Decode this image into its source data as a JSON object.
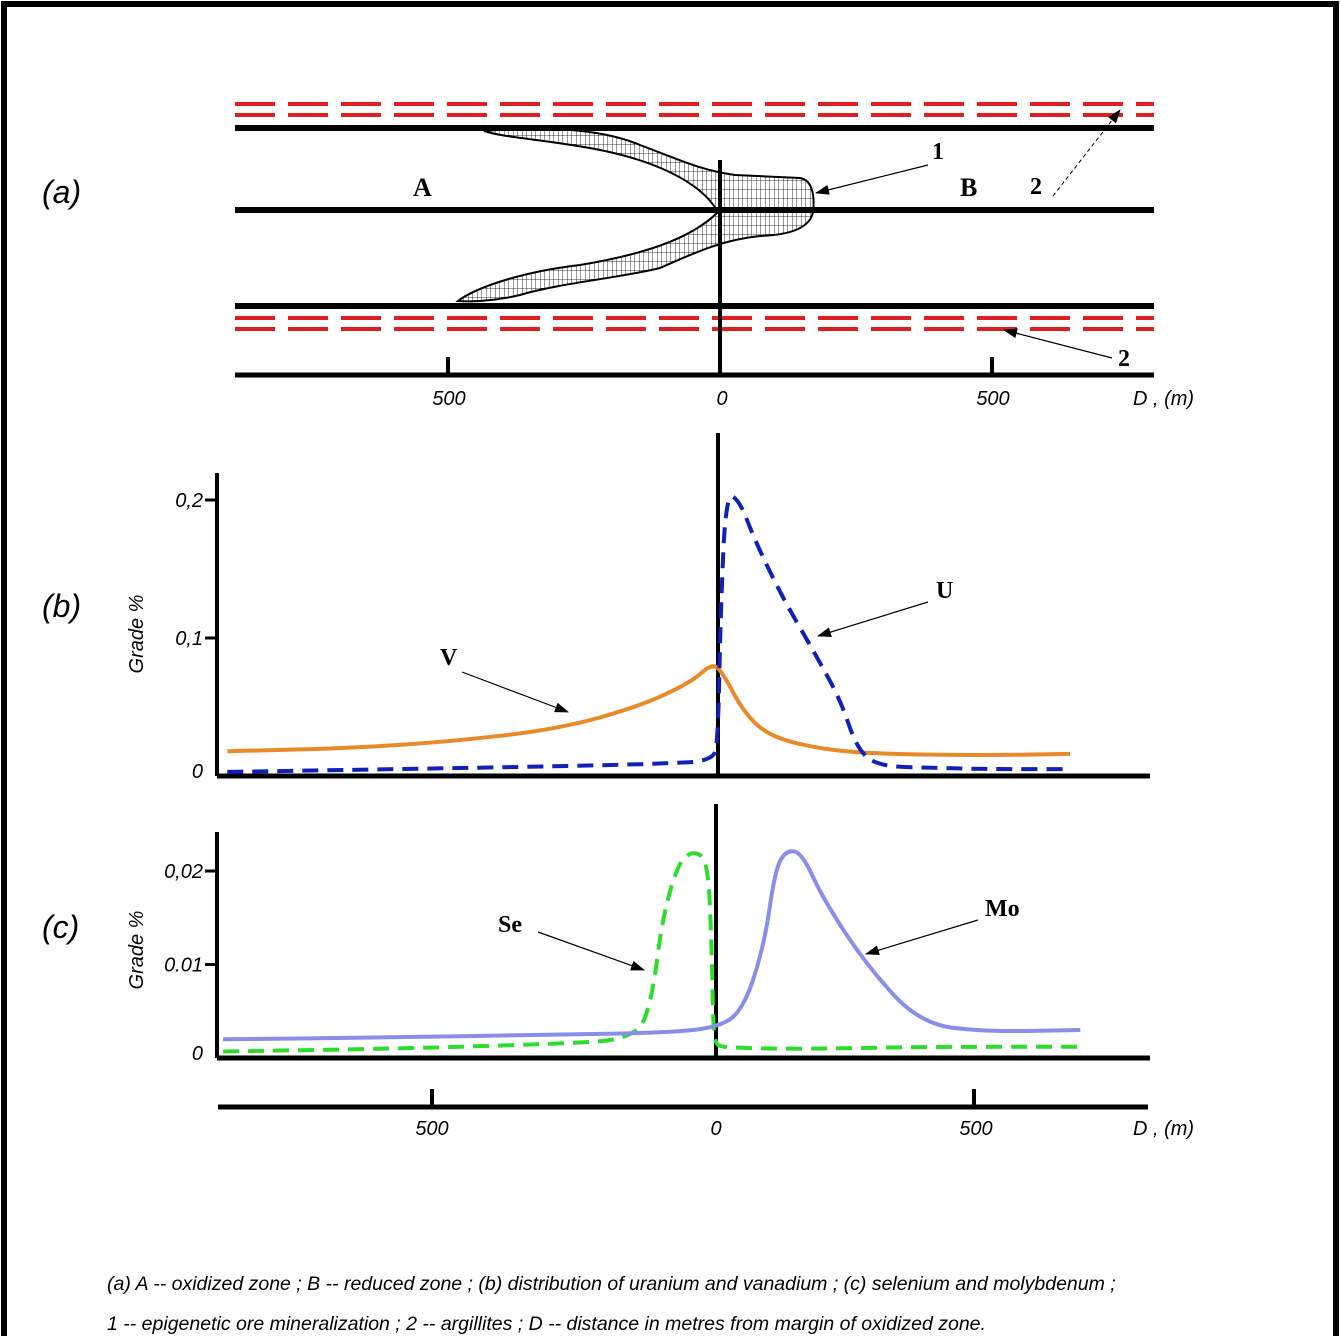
{
  "panels": {
    "a": {
      "label": "(a)",
      "zone_a": "A",
      "zone_b": "B",
      "callout_1": "1",
      "callout_2_top": "2",
      "callout_2_bottom": "2"
    },
    "b": {
      "label": "(b)"
    },
    "c": {
      "label": "(c)"
    }
  },
  "axis": {
    "x_ticks_a": [
      "500",
      "0",
      "500"
    ],
    "x_ticks_c": [
      "500",
      "0",
      "500"
    ],
    "x_label": "D , (m)",
    "y_label": "Grade %"
  },
  "chart_data": [
    {
      "id": "b",
      "type": "line",
      "xlabel": "D , (m)",
      "ylabel": "Grade %",
      "xlim": [
        -920,
        800
      ],
      "ylim": [
        0,
        0.2
      ],
      "yticks": [
        "0",
        "0,1",
        "0,2"
      ],
      "series": [
        {
          "name": "V",
          "color": "#e8892a",
          "dash": false,
          "x": [
            -920,
            -700,
            -500,
            -300,
            -150,
            -50,
            -10,
            10,
            50,
            100,
            200,
            300,
            500,
            660
          ],
          "y": [
            0.018,
            0.02,
            0.025,
            0.034,
            0.05,
            0.068,
            0.082,
            0.074,
            0.045,
            0.028,
            0.019,
            0.016,
            0.015,
            0.016
          ]
        },
        {
          "name": "U",
          "color": "#1020b8",
          "dash": true,
          "x": [
            -920,
            -600,
            -300,
            -100,
            -10,
            0,
            5,
            15,
            40,
            70,
            120,
            180,
            230,
            260,
            300,
            400,
            500,
            660
          ],
          "y": [
            0.003,
            0.005,
            0.007,
            0.009,
            0.011,
            0.025,
            0.12,
            0.205,
            0.2,
            0.17,
            0.13,
            0.09,
            0.055,
            0.02,
            0.007,
            0.006,
            0.005,
            0.005
          ]
        }
      ]
    },
    {
      "id": "c",
      "type": "line",
      "xlabel": "D , (m)",
      "ylabel": "Grade %",
      "xlim": [
        -920,
        800
      ],
      "ylim": [
        0,
        0.02
      ],
      "yticks": [
        "0",
        "0.01",
        "0,02"
      ],
      "xticks": [
        "500",
        "0",
        "500"
      ],
      "series": [
        {
          "name": "Se",
          "color": "#2ddc2d",
          "dash": true,
          "x": [
            -920,
            -600,
            -300,
            -150,
            -120,
            -100,
            -70,
            -40,
            -15,
            -8,
            -5,
            0,
            10,
            40,
            100,
            200,
            400,
            680
          ],
          "y": [
            0.0007,
            0.001,
            0.0015,
            0.002,
            0.006,
            0.015,
            0.021,
            0.0222,
            0.021,
            0.012,
            0.003,
            0.0015,
            0.0012,
            0.0011,
            0.001,
            0.001,
            0.0012,
            0.0012
          ]
        },
        {
          "name": "Mo",
          "color": "#8a8ee8",
          "dash": false,
          "x": [
            -920,
            -600,
            -300,
            -100,
            0,
            50,
            90,
            110,
            130,
            160,
            200,
            280,
            380,
            500,
            680
          ],
          "y": [
            0.002,
            0.0022,
            0.0025,
            0.0027,
            0.0032,
            0.005,
            0.012,
            0.02,
            0.0222,
            0.022,
            0.017,
            0.01,
            0.0037,
            0.0028,
            0.003
          ]
        }
      ]
    }
  ],
  "caption": {
    "line1": "(a)  A -- oxidized zone ; B -- reduced zone ; (b)  distribution of uranium and vanadium ; (c) selenium and molybdenum ;",
    "line2": "1 -- epigenetic ore mineralization ; 2 -- argillites ;  D -- distance in metres from margin of oxidized zone."
  },
  "colors": {
    "red_dash": "#e02020",
    "black": "#000000"
  }
}
